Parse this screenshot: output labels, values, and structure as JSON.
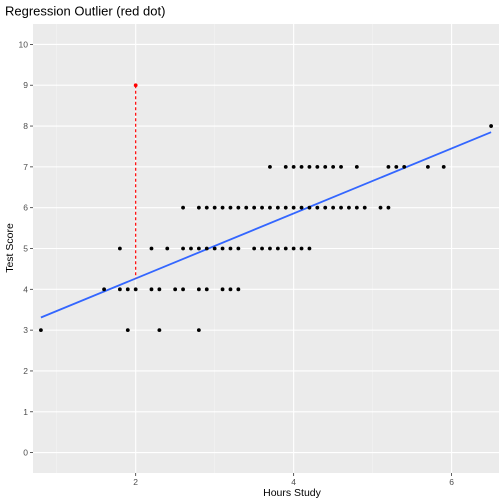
{
  "chart_data": {
    "type": "scatter",
    "title": "Regression Outlier (red dot)",
    "xlabel": "Hours Study",
    "ylabel": "Test Score",
    "xlim": [
      0.7,
      6.6
    ],
    "ylim": [
      -0.5,
      10.5
    ],
    "x_ticks": [
      2,
      4,
      6
    ],
    "y_ticks": [
      0,
      1,
      2,
      3,
      4,
      5,
      6,
      7,
      8,
      9,
      10
    ],
    "grid": true,
    "legend": "none",
    "colors": {
      "panel": "#ebebeb",
      "grid_major": "#ffffff",
      "grid_minor": "#f5f5f5",
      "points": "#000000",
      "fit_line": "#3366ff",
      "outlier": "#ff0000"
    },
    "points": [
      {
        "x": 0.8,
        "y": 3
      },
      {
        "x": 1.6,
        "y": 4
      },
      {
        "x": 1.8,
        "y": 4
      },
      {
        "x": 1.8,
        "y": 5
      },
      {
        "x": 1.9,
        "y": 3
      },
      {
        "x": 1.9,
        "y": 4
      },
      {
        "x": 2.0,
        "y": 4
      },
      {
        "x": 2.2,
        "y": 4
      },
      {
        "x": 2.2,
        "y": 5
      },
      {
        "x": 2.3,
        "y": 3
      },
      {
        "x": 2.3,
        "y": 4
      },
      {
        "x": 2.4,
        "y": 5
      },
      {
        "x": 2.5,
        "y": 4
      },
      {
        "x": 2.6,
        "y": 4
      },
      {
        "x": 2.6,
        "y": 5
      },
      {
        "x": 2.6,
        "y": 6
      },
      {
        "x": 2.7,
        "y": 5
      },
      {
        "x": 2.8,
        "y": 3
      },
      {
        "x": 2.8,
        "y": 4
      },
      {
        "x": 2.8,
        "y": 5
      },
      {
        "x": 2.8,
        "y": 6
      },
      {
        "x": 2.9,
        "y": 4
      },
      {
        "x": 2.9,
        "y": 5
      },
      {
        "x": 2.9,
        "y": 6
      },
      {
        "x": 3.0,
        "y": 5
      },
      {
        "x": 3.0,
        "y": 6
      },
      {
        "x": 3.1,
        "y": 4
      },
      {
        "x": 3.1,
        "y": 5
      },
      {
        "x": 3.1,
        "y": 6
      },
      {
        "x": 3.2,
        "y": 4
      },
      {
        "x": 3.2,
        "y": 5
      },
      {
        "x": 3.2,
        "y": 6
      },
      {
        "x": 3.3,
        "y": 4
      },
      {
        "x": 3.3,
        "y": 5
      },
      {
        "x": 3.3,
        "y": 6
      },
      {
        "x": 3.4,
        "y": 6
      },
      {
        "x": 3.5,
        "y": 5
      },
      {
        "x": 3.5,
        "y": 6
      },
      {
        "x": 3.6,
        "y": 5
      },
      {
        "x": 3.6,
        "y": 6
      },
      {
        "x": 3.7,
        "y": 5
      },
      {
        "x": 3.7,
        "y": 6
      },
      {
        "x": 3.7,
        "y": 7
      },
      {
        "x": 3.8,
        "y": 5
      },
      {
        "x": 3.8,
        "y": 6
      },
      {
        "x": 3.9,
        "y": 5
      },
      {
        "x": 3.9,
        "y": 6
      },
      {
        "x": 3.9,
        "y": 7
      },
      {
        "x": 4.0,
        "y": 5
      },
      {
        "x": 4.0,
        "y": 6
      },
      {
        "x": 4.0,
        "y": 7
      },
      {
        "x": 4.1,
        "y": 5
      },
      {
        "x": 4.1,
        "y": 6
      },
      {
        "x": 4.1,
        "y": 7
      },
      {
        "x": 4.2,
        "y": 5
      },
      {
        "x": 4.2,
        "y": 6
      },
      {
        "x": 4.2,
        "y": 7
      },
      {
        "x": 4.3,
        "y": 6
      },
      {
        "x": 4.3,
        "y": 7
      },
      {
        "x": 4.4,
        "y": 6
      },
      {
        "x": 4.4,
        "y": 7
      },
      {
        "x": 4.5,
        "y": 6
      },
      {
        "x": 4.5,
        "y": 7
      },
      {
        "x": 4.6,
        "y": 6
      },
      {
        "x": 4.6,
        "y": 7
      },
      {
        "x": 4.7,
        "y": 6
      },
      {
        "x": 4.8,
        "y": 6
      },
      {
        "x": 4.8,
        "y": 7
      },
      {
        "x": 4.9,
        "y": 6
      },
      {
        "x": 5.1,
        "y": 6
      },
      {
        "x": 5.2,
        "y": 6
      },
      {
        "x": 5.2,
        "y": 7
      },
      {
        "x": 5.3,
        "y": 7
      },
      {
        "x": 5.4,
        "y": 7
      },
      {
        "x": 5.7,
        "y": 7
      },
      {
        "x": 5.9,
        "y": 7
      },
      {
        "x": 6.5,
        "y": 8
      }
    ],
    "outlier": {
      "x": 2.0,
      "y": 9
    },
    "fit_line": {
      "x": [
        0.8,
        6.5
      ],
      "y": [
        3.31,
        7.85
      ]
    },
    "residual_line": {
      "x": 2.0,
      "y_from": 9,
      "y_to": 4.27
    }
  }
}
